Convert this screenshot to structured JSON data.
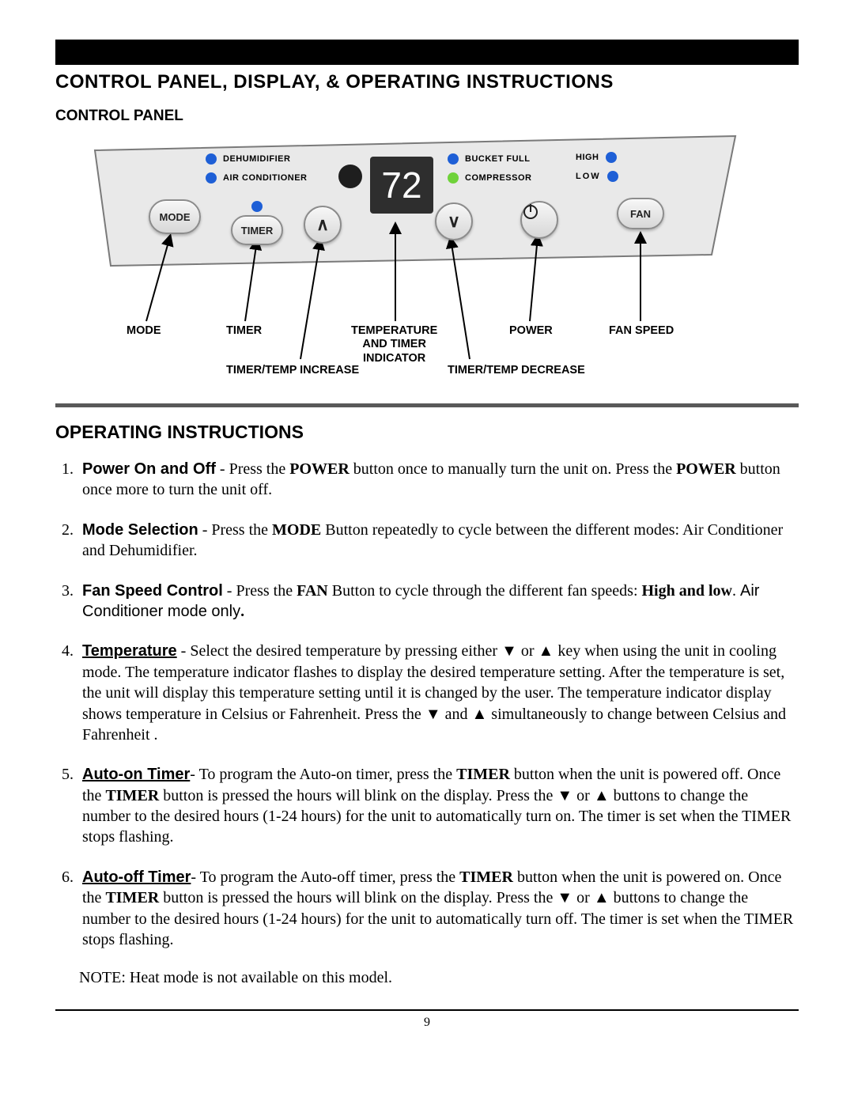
{
  "colors": {
    "led_blue": "#1e5fd6",
    "led_green": "#6fd23a",
    "panel_fill": "#e9e9e9",
    "panel_stroke": "#7a7a7a",
    "display_bg": "#2e2e2e",
    "divider": "#595959"
  },
  "page": {
    "title": "CONTROL PANEL, DISPLAY, & OPERATING INSTRUCTIONS",
    "section_label": "CONTROL PANEL",
    "instructions_title": "OPERATING INSTRUCTIONS",
    "page_number": "9"
  },
  "panel": {
    "display_value": "72",
    "leds_left": [
      {
        "label": "DEHUMIDIFIER"
      },
      {
        "label": "AIR CONDITIONER"
      }
    ],
    "leds_center": [
      {
        "label": "BUCKET FULL"
      },
      {
        "label": "COMPRESSOR"
      }
    ],
    "leds_right": [
      {
        "label": "HIGH"
      },
      {
        "label": "LOW"
      }
    ],
    "buttons": {
      "mode": "MODE",
      "timer": "TIMER",
      "fan": "FAN",
      "up": "∧",
      "down": "∨",
      "power": "⏻"
    },
    "callouts": {
      "mode": "MODE",
      "timer": "TIMER",
      "temp_ind": "TEMPERATURE\nAND TIMER\nINDICATOR",
      "power": "POWER",
      "fan": "FAN SPEED",
      "increase": "TIMER/TEMP INCREASE",
      "decrease": "TIMER/TEMP DECREASE"
    }
  },
  "instructions": [
    {
      "lead": "Power On and Off",
      "underline": false,
      "html": " - Press the <b>POWER</b> button once to manually turn the unit on. Press the <b>POWER</b> button once more to turn the unit off."
    },
    {
      "lead": "Mode Selection",
      "underline": false,
      "html": " - Press the <b>MODE</b> Button repeatedly to cycle between the different modes: Air Conditioner and Dehumidifier."
    },
    {
      "lead": "Fan Speed Control",
      "underline": false,
      "html": " - Press the <b>FAN</b> Button to cycle through the different fan speeds: <b>High and low</b>. <span class=\"italic-sans\">Air Conditioner mode only</span><b>.</b>"
    },
    {
      "lead": "Temperature",
      "underline": true,
      "html": " - Select the desired temperature by pressing either <span class=\"arrow-glyph\">▼</span> or <span class=\"arrow-glyph\">▲</span> key when using the unit in cooling mode. The temperature indicator flashes to display the desired temperature setting. After the temperature is set, the unit will display this temperature setting until it is changed by the user. The temperature indicator display shows temperature in Celsius or Fahrenheit.  Press the <span class=\"arrow-glyph\">▼</span> and <span class=\"arrow-glyph\">▲</span> simultaneously to change between  Celsius and Fahrenheit ."
    },
    {
      "lead": "Auto-on Timer",
      "underline": true,
      "html": "- To program the Auto-on timer,  press the <b>TIMER</b> button when the unit is powered off. Once the <b>TIMER</b> button is pressed the hours will blink on the display. Press the <span class=\"arrow-glyph\">▼</span> or <span class=\"arrow-glyph\">▲</span> buttons to change the number to the desired hours (1-24 hours) for the unit to automatically turn on. The timer is set when the TIMER stops flashing."
    },
    {
      "lead": "Auto-off Timer",
      "underline": true,
      "html": "- To program the Auto-off timer,  press the <b>TIMER</b> button when the unit is powered on. Once the <b>TIMER</b> button is pressed the hours will blink on the display. Press the <span class=\"arrow-glyph\">▼</span> or <span class=\"arrow-glyph\">▲</span> buttons to change the number to the desired hours (1-24 hours) for the unit to automatically turn off. The timer is set when the TIMER stops flashing."
    }
  ],
  "note": "NOTE: Heat mode is not available on this model."
}
